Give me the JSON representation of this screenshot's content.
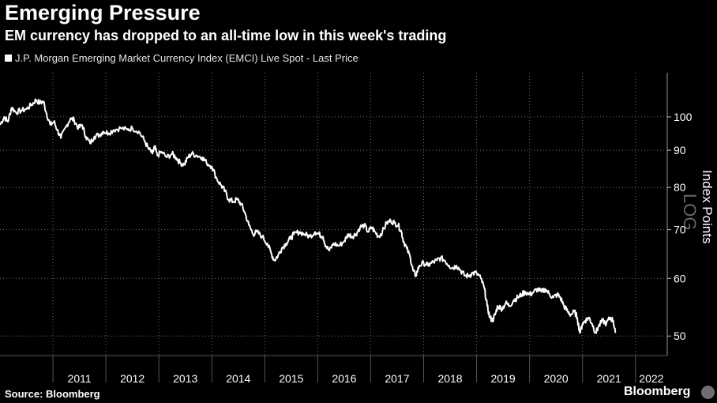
{
  "header": {
    "title": "Emerging Pressure",
    "subtitle": "EM currency has dropped to an all-time low in this week's trading"
  },
  "footer": {
    "source": "Source: Bloomberg",
    "brand": "Bloomberg"
  },
  "colors": {
    "background": "#000000",
    "line": "#ffffff",
    "grid": "#6e6e6e"
  },
  "chart_data": {
    "type": "line",
    "title": "Emerging Pressure",
    "subtitle": "EM currency has dropped to an all-time low in this week's trading",
    "ylabel": "Index Points",
    "y_scale": "log",
    "y_scale_mark": "LOG",
    "y_ticks": [
      50,
      60,
      70,
      80,
      90,
      100
    ],
    "y_tick_labels": [
      "50",
      "60",
      "70",
      "80",
      "90",
      "100"
    ],
    "ylim": [
      47,
      115
    ],
    "xlim": [
      2010.0,
      2022.6
    ],
    "x_tick_labels": [
      "2011",
      "2012",
      "2013",
      "2014",
      "2015",
      "2016",
      "2017",
      "2018",
      "2019",
      "2020",
      "2021",
      "2022"
    ],
    "x_tick_years": [
      2011,
      2012,
      2013,
      2014,
      2015,
      2016,
      2017,
      2018,
      2019,
      2020,
      2021,
      2022
    ],
    "grid": true,
    "legend_placement": "top-left",
    "series": [
      {
        "name": "J.P. Morgan Emerging Market Currency Index (EMCI) Live Spot - Last Price",
        "points": [
          [
            2010.0,
            97.5
          ],
          [
            2010.08,
            100.0
          ],
          [
            2010.15,
            98.5
          ],
          [
            2010.22,
            103.0
          ],
          [
            2010.3,
            101.5
          ],
          [
            2010.4,
            102.0
          ],
          [
            2010.5,
            102.5
          ],
          [
            2010.6,
            104.0
          ],
          [
            2010.68,
            105.5
          ],
          [
            2010.75,
            104.5
          ],
          [
            2010.82,
            105.0
          ],
          [
            2010.88,
            101.0
          ],
          [
            2010.95,
            97.5
          ],
          [
            2011.02,
            98.5
          ],
          [
            2011.08,
            96.0
          ],
          [
            2011.15,
            93.5
          ],
          [
            2011.25,
            97.0
          ],
          [
            2011.33,
            99.5
          ],
          [
            2011.4,
            99.0
          ],
          [
            2011.48,
            96.5
          ],
          [
            2011.55,
            97.5
          ],
          [
            2011.62,
            94.0
          ],
          [
            2011.7,
            92.0
          ],
          [
            2011.78,
            94.0
          ],
          [
            2011.88,
            94.5
          ],
          [
            2011.95,
            95.5
          ],
          [
            2012.05,
            95.0
          ],
          [
            2012.15,
            96.0
          ],
          [
            2012.28,
            96.5
          ],
          [
            2012.4,
            96.0
          ],
          [
            2012.5,
            96.5
          ],
          [
            2012.62,
            95.5
          ],
          [
            2012.72,
            93.0
          ],
          [
            2012.8,
            90.5
          ],
          [
            2012.88,
            89.0
          ],
          [
            2012.92,
            91.0
          ],
          [
            2012.97,
            88.5
          ],
          [
            2013.05,
            89.5
          ],
          [
            2013.15,
            88.0
          ],
          [
            2013.25,
            89.0
          ],
          [
            2013.32,
            88.0
          ],
          [
            2013.4,
            86.5
          ],
          [
            2013.48,
            86.0
          ],
          [
            2013.55,
            88.0
          ],
          [
            2013.62,
            89.0
          ],
          [
            2013.72,
            88.5
          ],
          [
            2013.82,
            88.0
          ],
          [
            2013.9,
            86.5
          ],
          [
            2014.0,
            85.5
          ],
          [
            2014.1,
            82.0
          ],
          [
            2014.18,
            80.5
          ],
          [
            2014.25,
            79.0
          ],
          [
            2014.32,
            77.0
          ],
          [
            2014.4,
            76.5
          ],
          [
            2014.48,
            77.0
          ],
          [
            2014.55,
            76.0
          ],
          [
            2014.62,
            74.0
          ],
          [
            2014.7,
            71.0
          ],
          [
            2014.78,
            69.0
          ],
          [
            2014.85,
            69.5
          ],
          [
            2014.95,
            68.5
          ],
          [
            2015.05,
            67.0
          ],
          [
            2015.12,
            65.0
          ],
          [
            2015.18,
            63.5
          ],
          [
            2015.25,
            64.5
          ],
          [
            2015.32,
            66.0
          ],
          [
            2015.4,
            67.0
          ],
          [
            2015.48,
            68.0
          ],
          [
            2015.55,
            69.0
          ],
          [
            2015.65,
            69.5
          ],
          [
            2015.75,
            69.0
          ],
          [
            2015.85,
            68.5
          ],
          [
            2015.95,
            69.5
          ],
          [
            2016.02,
            69.0
          ],
          [
            2016.1,
            68.5
          ],
          [
            2016.15,
            66.5
          ],
          [
            2016.22,
            65.5
          ],
          [
            2016.3,
            67.0
          ],
          [
            2016.4,
            66.5
          ],
          [
            2016.5,
            67.5
          ],
          [
            2016.58,
            69.0
          ],
          [
            2016.65,
            68.5
          ],
          [
            2016.72,
            69.0
          ],
          [
            2016.8,
            70.5
          ],
          [
            2016.88,
            71.0
          ],
          [
            2016.95,
            69.5
          ],
          [
            2017.02,
            70.5
          ],
          [
            2017.08,
            69.5
          ],
          [
            2017.15,
            68.5
          ],
          [
            2017.22,
            69.5
          ],
          [
            2017.3,
            71.5
          ],
          [
            2017.38,
            72.0
          ],
          [
            2017.45,
            71.5
          ],
          [
            2017.52,
            71.0
          ],
          [
            2017.58,
            69.5
          ],
          [
            2017.62,
            67.5
          ],
          [
            2017.68,
            66.0
          ],
          [
            2017.75,
            64.0
          ],
          [
            2017.8,
            61.5
          ],
          [
            2017.85,
            60.5
          ],
          [
            2017.92,
            62.5
          ],
          [
            2018.0,
            63.0
          ],
          [
            2018.08,
            62.5
          ],
          [
            2018.15,
            63.0
          ],
          [
            2018.25,
            63.5
          ],
          [
            2018.32,
            64.0
          ],
          [
            2018.4,
            63.5
          ],
          [
            2018.48,
            62.5
          ],
          [
            2018.55,
            62.0
          ],
          [
            2018.62,
            62.5
          ],
          [
            2018.7,
            61.5
          ],
          [
            2018.78,
            60.5
          ],
          [
            2018.85,
            60.5
          ],
          [
            2018.92,
            61.0
          ],
          [
            2019.0,
            61.0
          ],
          [
            2019.08,
            60.0
          ],
          [
            2019.15,
            58.0
          ],
          [
            2019.2,
            55.0
          ],
          [
            2019.25,
            53.0
          ],
          [
            2019.3,
            52.5
          ],
          [
            2019.35,
            53.5
          ],
          [
            2019.4,
            55.0
          ],
          [
            2019.48,
            54.5
          ],
          [
            2019.55,
            55.5
          ],
          [
            2019.62,
            55.0
          ],
          [
            2019.7,
            56.0
          ],
          [
            2019.78,
            56.5
          ],
          [
            2019.85,
            57.0
          ],
          [
            2019.92,
            57.5
          ],
          [
            2020.0,
            57.0
          ],
          [
            2020.08,
            57.5
          ],
          [
            2020.15,
            58.0
          ],
          [
            2020.22,
            57.5
          ],
          [
            2020.3,
            58.0
          ],
          [
            2020.38,
            57.0
          ],
          [
            2020.45,
            56.5
          ],
          [
            2020.52,
            57.0
          ],
          [
            2020.58,
            56.5
          ],
          [
            2020.65,
            55.0
          ],
          [
            2020.72,
            54.0
          ],
          [
            2020.78,
            53.5
          ],
          [
            2020.85,
            54.0
          ],
          [
            2020.9,
            53.0
          ],
          [
            2020.95,
            50.5
          ],
          [
            2021.0,
            52.0
          ],
          [
            2021.05,
            52.5
          ],
          [
            2021.12,
            53.0
          ],
          [
            2021.18,
            52.0
          ],
          [
            2021.25,
            50.5
          ],
          [
            2021.3,
            51.5
          ],
          [
            2021.38,
            52.5
          ],
          [
            2021.45,
            52.0
          ],
          [
            2021.52,
            53.0
          ],
          [
            2021.58,
            52.5
          ],
          [
            2021.62,
            50.5
          ]
        ]
      }
    ]
  }
}
